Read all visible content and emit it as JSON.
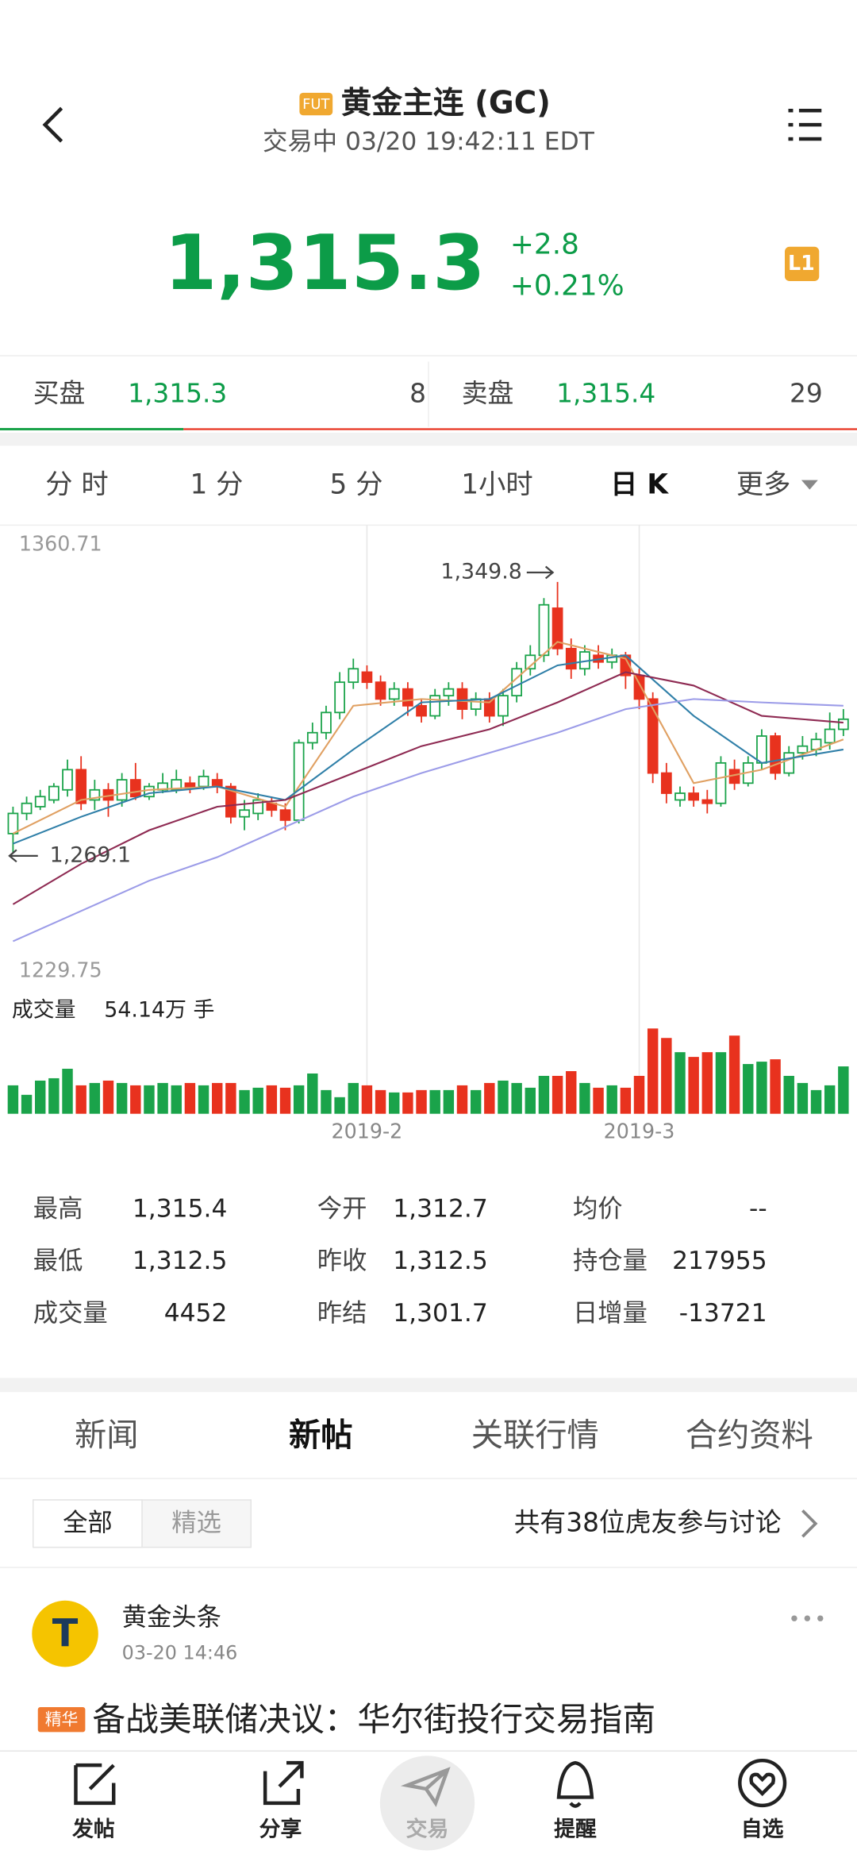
{
  "header": {
    "badge": "FUT",
    "title": "黄金主连 (GC)",
    "status": "交易中 03/20 19:42:11 EDT"
  },
  "quote": {
    "price": "1,315.3",
    "change": "+2.8",
    "change_pct": "+0.21%",
    "level": "L1"
  },
  "order_book": {
    "bid": {
      "label": "买盘",
      "price": "1,315.3",
      "size": "8"
    },
    "ask": {
      "label": "卖盘",
      "price": "1,315.4",
      "size": "29"
    }
  },
  "periods": {
    "items": [
      "分 时",
      "1 分",
      "5 分",
      "1小时",
      "日 K",
      "更多"
    ],
    "active": 4
  },
  "chart_data": {
    "type": "candlestick",
    "open": [
      1275,
      1281,
      1283,
      1285,
      1288,
      1294,
      1285,
      1288,
      1285,
      1291,
      1286,
      1288,
      1288,
      1290,
      1289,
      1291,
      1289,
      1280,
      1281,
      1284,
      1282,
      1279,
      1302,
      1305,
      1311,
      1320,
      1323,
      1320,
      1315,
      1318,
      1313,
      1310,
      1316,
      1318,
      1312,
      1315,
      1310,
      1316,
      1324,
      1328,
      1342,
      1330,
      1324,
      1328,
      1326,
      1328,
      1322,
      1315,
      1293,
      1285,
      1287,
      1285,
      1284,
      1294,
      1290,
      1296,
      1304,
      1293,
      1299,
      1300,
      1302,
      1306
    ],
    "high": [
      1283,
      1286,
      1288,
      1290,
      1297,
      1298,
      1291,
      1290,
      1293,
      1296,
      1290,
      1293,
      1294,
      1292,
      1294,
      1293,
      1290,
      1285,
      1287,
      1286,
      1284,
      1303,
      1308,
      1313,
      1323,
      1327,
      1325,
      1322,
      1320,
      1320,
      1315,
      1318,
      1320,
      1320,
      1317,
      1317,
      1318,
      1326,
      1331,
      1345,
      1349.8,
      1333,
      1331,
      1331,
      1330,
      1329,
      1324,
      1317,
      1296,
      1289,
      1289,
      1288,
      1298,
      1297,
      1298,
      1306,
      1305,
      1301,
      1304,
      1305,
      1311,
      1312
    ],
    "low": [
      1269.1,
      1279,
      1282,
      1284,
      1286,
      1282,
      1282,
      1280,
      1283,
      1285,
      1285,
      1287,
      1287,
      1287,
      1288,
      1287,
      1278,
      1276,
      1279,
      1280,
      1276,
      1278,
      1300,
      1303,
      1309,
      1318,
      1318,
      1313,
      1313,
      1310,
      1308,
      1309,
      1313,
      1309,
      1310,
      1308,
      1307,
      1314,
      1322,
      1326,
      1328,
      1321,
      1322,
      1324,
      1324,
      1318,
      1312,
      1290,
      1284,
      1283,
      1283,
      1281,
      1283,
      1288,
      1289,
      1294,
      1291,
      1292,
      1297,
      1298,
      1300,
      1304
    ],
    "close": [
      1281,
      1284,
      1286,
      1289,
      1294,
      1284,
      1288,
      1285,
      1291,
      1286,
      1289,
      1290,
      1291,
      1289,
      1292,
      1289,
      1280,
      1282,
      1285,
      1282,
      1279,
      1302,
      1305,
      1311,
      1320,
      1324,
      1320,
      1315,
      1318,
      1313,
      1310,
      1316,
      1318,
      1312,
      1315,
      1310,
      1316,
      1324,
      1328,
      1343,
      1330,
      1324,
      1329,
      1326,
      1328,
      1322,
      1315,
      1293,
      1287,
      1287,
      1285,
      1284,
      1296,
      1290,
      1296,
      1304,
      1293,
      1299,
      1301,
      1303,
      1306,
      1309
    ],
    "up_color": "#1aa34a",
    "down_color": "#e8321e",
    "ylim": [
      1229.75,
      1360.71
    ],
    "yticks": [
      1229.75,
      1360.71
    ],
    "xticks": [
      {
        "value": 26,
        "label": "2019-2"
      },
      {
        "value": 46,
        "label": "2019-3"
      }
    ],
    "annotations": [
      {
        "value": 1349.8,
        "label": "1,349.8"
      },
      {
        "value": 1269.1,
        "label": "1,269.1"
      }
    ],
    "ma": {
      "x": [
        0,
        5,
        10,
        15,
        20,
        25,
        30,
        35,
        40,
        45,
        50,
        55,
        61
      ],
      "series": [
        {
          "color": "#e0a062",
          "values": [
            1275,
            1285,
            1288,
            1289,
            1283,
            1313,
            1315,
            1314,
            1332,
            1327,
            1290,
            1294,
            1303
          ]
        },
        {
          "color": "#2f7fa8",
          "values": [
            1272,
            1280,
            1287,
            1289,
            1285,
            1300,
            1314,
            1315,
            1325,
            1328,
            1310,
            1296,
            1300
          ]
        },
        {
          "color": "#8e2a52",
          "values": [
            1254,
            1266,
            1276,
            1283,
            1285,
            1293,
            1301,
            1306,
            1314,
            1323,
            1319,
            1310,
            1308
          ]
        },
        {
          "color": "#9c9ce8",
          "values": [
            1243,
            1252,
            1261,
            1268,
            1277,
            1286,
            1293,
            1299,
            1305,
            1312,
            1315,
            1314,
            1313
          ]
        }
      ]
    },
    "volume": {
      "label": "成交量",
      "value_label": "54.14万 手",
      "values": [
        12,
        8,
        14,
        15,
        19,
        12,
        13,
        14,
        13,
        12,
        12,
        13,
        12,
        13,
        12,
        13,
        13,
        10,
        11,
        12,
        11,
        12,
        17,
        10,
        7,
        13,
        12,
        10,
        9,
        9,
        10,
        10,
        10,
        12,
        10,
        13,
        14,
        13,
        11,
        16,
        16,
        18,
        13,
        11,
        12,
        11,
        16,
        36,
        32,
        26,
        24,
        26,
        26,
        33,
        21,
        22,
        23,
        16,
        13,
        10,
        12,
        20
      ]
    }
  },
  "stats": {
    "rows": [
      [
        {
          "label": "最高",
          "value": "1,315.4"
        },
        {
          "label": "今开",
          "value": "1,312.7"
        },
        {
          "label": "均价",
          "value": "--"
        }
      ],
      [
        {
          "label": "最低",
          "value": "1,312.5"
        },
        {
          "label": "昨收",
          "value": "1,312.5"
        },
        {
          "label": "持仓量",
          "value": "217955"
        }
      ],
      [
        {
          "label": "成交量",
          "value": "4452"
        },
        {
          "label": "昨结",
          "value": "1,301.7"
        },
        {
          "label": "日增量",
          "value": "-13721"
        }
      ]
    ]
  },
  "tabs": {
    "items": [
      "新闻",
      "新帖",
      "关联行情",
      "合约资料"
    ],
    "active": 1
  },
  "filter": {
    "items": [
      "全部",
      "精选"
    ],
    "active": 0,
    "summary": "共有38位虎友参与讨论"
  },
  "post": {
    "avatar": "T",
    "author": "黄金头条",
    "time": "03-20 14:46",
    "tag": "精华",
    "title": "备战美联储决议：华尔街投行交易指南"
  },
  "nav": {
    "items": [
      "发帖",
      "分享",
      "交易",
      "提醒",
      "自选"
    ]
  }
}
